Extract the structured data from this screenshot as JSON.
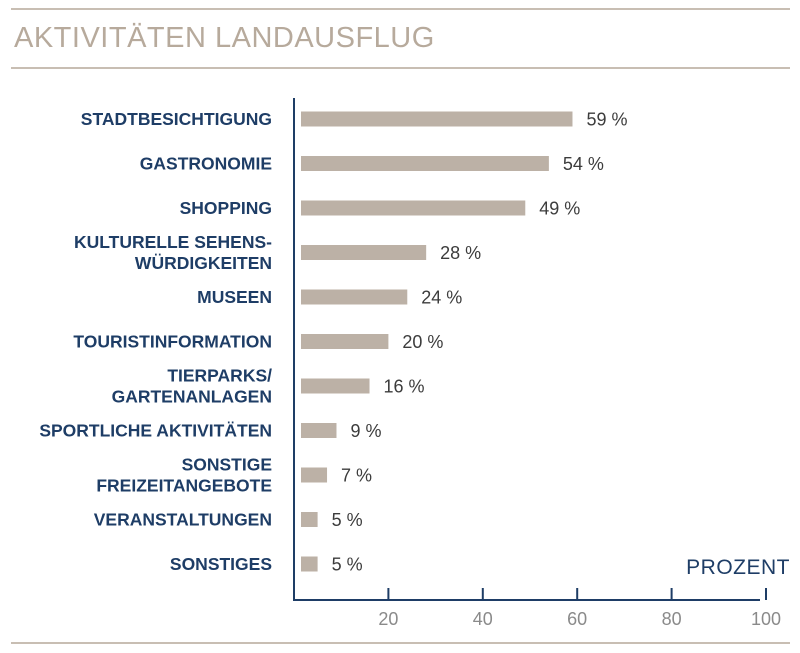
{
  "page": {
    "title": "AKTIVITÄTEN LANDAUSFLUG"
  },
  "chart_data": {
    "type": "bar",
    "orientation": "horizontal",
    "title": "AKTIVITÄTEN LANDAUSFLUG",
    "unit_label": "PROZENT",
    "categories": [
      [
        "STADTBESICHTIGUNG"
      ],
      [
        "GASTRONOMIE"
      ],
      [
        "SHOPPING"
      ],
      [
        "KULTURELLE SEHENS-",
        "WÜRDIGKEITEN"
      ],
      [
        "MUSEEN"
      ],
      [
        "TOURISTINFORMATION"
      ],
      [
        "TIERPARKS/",
        "GARTENANLAGEN"
      ],
      [
        "SPORTLICHE AKTIVITÄTEN"
      ],
      [
        "SONSTIGE",
        "FREIZEITANGEBOTE"
      ],
      [
        "VERANSTALTUNGEN"
      ],
      [
        "SONSTIGES"
      ]
    ],
    "values": [
      59,
      54,
      49,
      28,
      24,
      20,
      16,
      9,
      7,
      5,
      5
    ],
    "value_suffix": " %",
    "xlim": [
      0,
      100
    ],
    "xticks": [
      20,
      40,
      60,
      80,
      100
    ],
    "colors": {
      "bar": "#bcb1a6",
      "axis": "#1e3d66",
      "category_text": "#1e3d66",
      "title": "#b7aa9c",
      "rule": "#c8beb3"
    }
  }
}
